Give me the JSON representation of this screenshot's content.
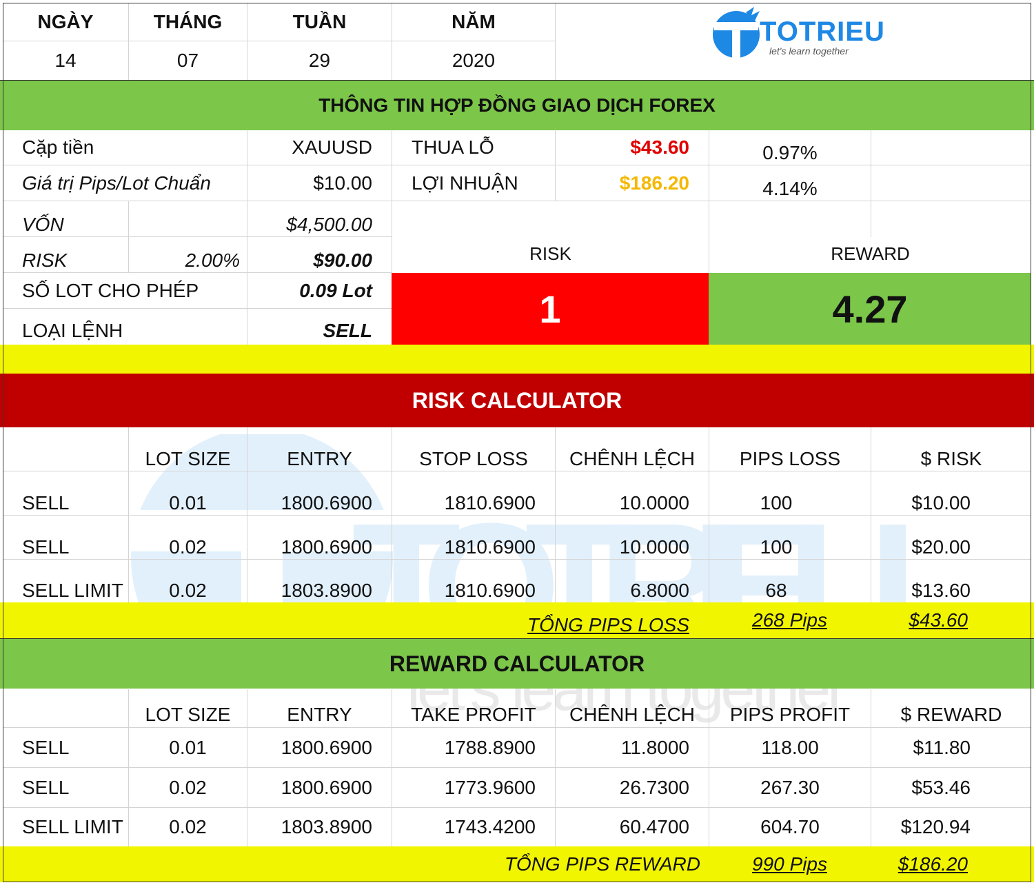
{
  "date_header": {
    "labels": [
      "NGÀY",
      "THÁNG",
      "TUẦN",
      "NĂM"
    ],
    "values": [
      "14",
      "07",
      "29",
      "2020"
    ]
  },
  "logo": {
    "name": "TOTRIEU",
    "tagline": "let's learn together"
  },
  "contract": {
    "title": "THÔNG TIN HỢP ĐỒNG GIAO DỊCH FOREX",
    "pair_label": "Cặp tiền",
    "pair_value": "XAUUSD",
    "loss_label": "THUA LỖ",
    "loss_value": "$43.60",
    "loss_pct": "0.97%",
    "pip_label": "Giá trị Pips/Lot Chuẩn",
    "pip_value": "$10.00",
    "profit_label": "LỢI NHUẬN",
    "profit_value": "$186.20",
    "profit_pct": "4.14%",
    "capital_label": "VỐN",
    "capital_value": "$4,500.00",
    "risk_label": "RISK",
    "risk_pct": "2.00%",
    "risk_value": "$90.00",
    "lot_label": "SỐ LOT CHO PHÉP",
    "lot_value": "0.09 Lot",
    "order_label": "LOẠI LỆNH",
    "order_value": "SELL",
    "ratio_risk_label": "RISK",
    "ratio_reward_label": "REWARD",
    "ratio_risk_value": "1",
    "ratio_reward_value": "4.27"
  },
  "risk_calc": {
    "title": "RISK CALCULATOR",
    "headers": [
      "",
      "LOT SIZE",
      "ENTRY",
      "STOP LOSS",
      "CHÊNH LỆCH",
      "PIPS LOSS",
      "$ RISK"
    ],
    "rows": [
      [
        "SELL",
        "0.01",
        "1800.6900",
        "1810.6900",
        "10.0000",
        "100",
        "$10.00"
      ],
      [
        "SELL",
        "0.02",
        "1800.6900",
        "1810.6900",
        "10.0000",
        "100",
        "$20.00"
      ],
      [
        "SELL LIMIT",
        "0.02",
        "1803.8900",
        "1810.6900",
        "6.8000",
        "68",
        "$13.60"
      ]
    ],
    "total_label": "TỔNG PIPS LOSS",
    "total_pips": "268 Pips",
    "total_amount": "$43.60"
  },
  "reward_calc": {
    "title": "REWARD CALCULATOR",
    "headers": [
      "",
      "LOT SIZE",
      "ENTRY",
      "TAKE PROFIT",
      "CHÊNH LỆCH",
      "PIPS PROFIT",
      "$ REWARD"
    ],
    "rows": [
      [
        "SELL",
        "0.01",
        "1800.6900",
        "1788.8900",
        "11.8000",
        "118.00",
        "$11.80"
      ],
      [
        "SELL",
        "0.02",
        "1800.6900",
        "1773.9600",
        "26.7300",
        "267.30",
        "$53.46"
      ],
      [
        "SELL LIMIT",
        "0.02",
        "1803.8900",
        "1743.4200",
        "60.4700",
        "604.70",
        "$120.94"
      ]
    ],
    "total_label": "TỔNG PIPS REWARD",
    "total_pips": "990 Pips",
    "total_amount": "$186.20"
  },
  "colors": {
    "green": "#7cc64a",
    "yellow": "#f2f500",
    "dark_red": "#c00000",
    "red": "#ff0000",
    "logo_blue": "#1e88e5",
    "loss": "#e00000",
    "profit": "#f5b800"
  }
}
